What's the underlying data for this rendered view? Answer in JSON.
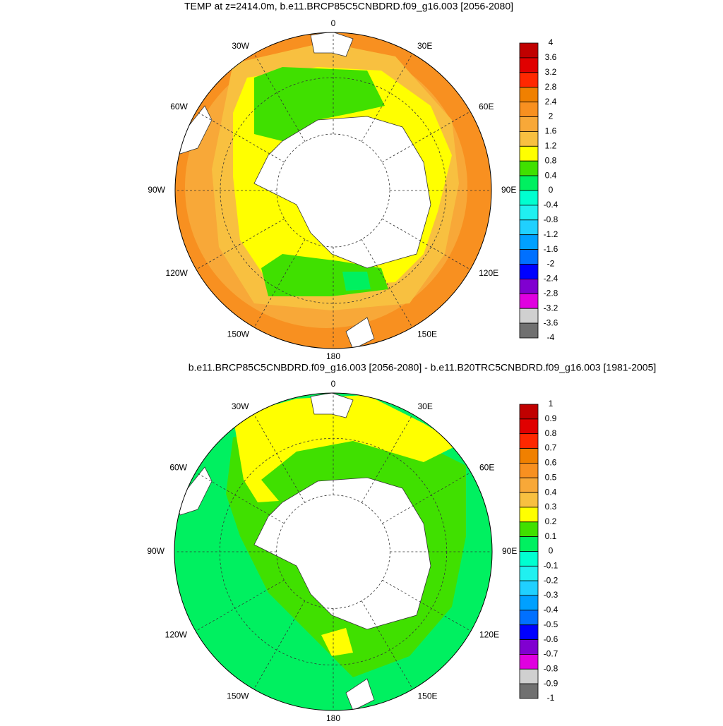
{
  "chart_data": [
    {
      "type": "contour_map",
      "title": "TEMP at z=2414.0m, b.e11.BRCP85C5CNBDRD.f09_g16.003 [2056-2080]",
      "lon_labels": [
        "0",
        "30E",
        "60E",
        "90E",
        "120E",
        "150E",
        "180",
        "150W",
        "120W",
        "90W",
        "60W",
        "30W"
      ],
      "levels": [
        4,
        3.6,
        3.2,
        2.8,
        2.4,
        2,
        1.6,
        1.2,
        0.8,
        0.4,
        0,
        -0.4,
        -0.8,
        -1.2,
        -1.6,
        -2,
        -2.4,
        -2.8,
        -3.2,
        -3.6,
        -4
      ],
      "colors": [
        "#c00000",
        "#e00000",
        "#ff2800",
        "#f08000",
        "#f89020",
        "#f8a838",
        "#f8c040",
        "#ffff00",
        "#40e000",
        "#00f060",
        "#00ffd0",
        "#20f0f0",
        "#20d0ff",
        "#00a0ff",
        "#0070ff",
        "#0000ff",
        "#8000d0",
        "#e000e0",
        "#d0d0d0",
        "#707070"
      ]
    },
    {
      "type": "contour_map",
      "title": "b.e11.BRCP85C5CNBDRD.f09_g16.003 [2056-2080] - b.e11.B20TRC5CNBDRD.f09_g16.003 [1981-2005]",
      "lon_labels": [
        "0",
        "30E",
        "60E",
        "90E",
        "120E",
        "150E",
        "180",
        "150W",
        "120W",
        "90W",
        "60W",
        "30W"
      ],
      "levels": [
        1,
        0.9,
        0.8,
        0.7,
        0.6,
        0.5,
        0.4,
        0.3,
        0.2,
        0.1,
        0,
        -0.1,
        -0.2,
        -0.3,
        -0.4,
        -0.5,
        -0.6,
        -0.7,
        -0.8,
        -0.9,
        -1
      ],
      "colors": [
        "#c00000",
        "#e00000",
        "#ff2800",
        "#f08000",
        "#f89020",
        "#f8a838",
        "#f8c040",
        "#ffff00",
        "#40e000",
        "#00f060",
        "#00ffd0",
        "#20f0f0",
        "#20d0ff",
        "#00a0ff",
        "#0070ff",
        "#0000ff",
        "#8000d0",
        "#e000e0",
        "#d0d0d0",
        "#707070"
      ]
    }
  ]
}
